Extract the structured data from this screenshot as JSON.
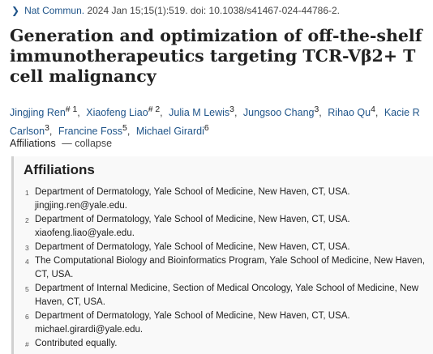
{
  "citation": {
    "journal": "Nat Commun.",
    "details": "2024 Jan 15;15(1):519. doi: 10.1038/s41467-024-44786-2.",
    "chevron_icon": "chevron-right-icon"
  },
  "title": "Generation and optimization of off-the-shelf immunotherapeutics targeting TCR-Vβ2+ T cell malignancy",
  "authors": [
    {
      "name": "Jingjing Ren",
      "sup": "# 1"
    },
    {
      "name": "Xiaofeng Liao",
      "sup": "# 2"
    },
    {
      "name": "Julia M Lewis",
      "sup": "3"
    },
    {
      "name": "Jungsoo Chang",
      "sup": "3"
    },
    {
      "name": "Rihao Qu",
      "sup": "4"
    },
    {
      "name": "Kacie R Carlson",
      "sup": "3"
    },
    {
      "name": "Francine Foss",
      "sup": "5"
    },
    {
      "name": "Michael Girardi",
      "sup": "6"
    }
  ],
  "affiliations_toggle": {
    "label": "Affiliations",
    "action": "— collapse"
  },
  "affiliations": {
    "heading": "Affiliations",
    "items": [
      {
        "num": "1",
        "text": "Department of Dermatology, Yale School of Medicine, New Haven, CT, USA.",
        "extra": "jingjing.ren@yale.edu."
      },
      {
        "num": "2",
        "text": "Department of Dermatology, Yale School of Medicine, New Haven, CT, USA.",
        "extra": "xiaofeng.liao@yale.edu."
      },
      {
        "num": "3",
        "text": "Department of Dermatology, Yale School of Medicine, New Haven, CT, USA.",
        "extra": ""
      },
      {
        "num": "4",
        "text": "The Computational Biology and Bioinformatics Program, Yale School of Medicine, New Haven, CT, USA.",
        "extra": ""
      },
      {
        "num": "5",
        "text": "Department of Internal Medicine, Section of Medical Oncology, Yale School of Medicine, New Haven, CT, USA.",
        "extra": ""
      },
      {
        "num": "6",
        "text": "Department of Dermatology, Yale School of Medicine, New Haven, CT, USA.",
        "extra": "michael.girardi@yale.edu."
      },
      {
        "num": "#",
        "text": "Contributed equally.",
        "extra": ""
      }
    ]
  }
}
